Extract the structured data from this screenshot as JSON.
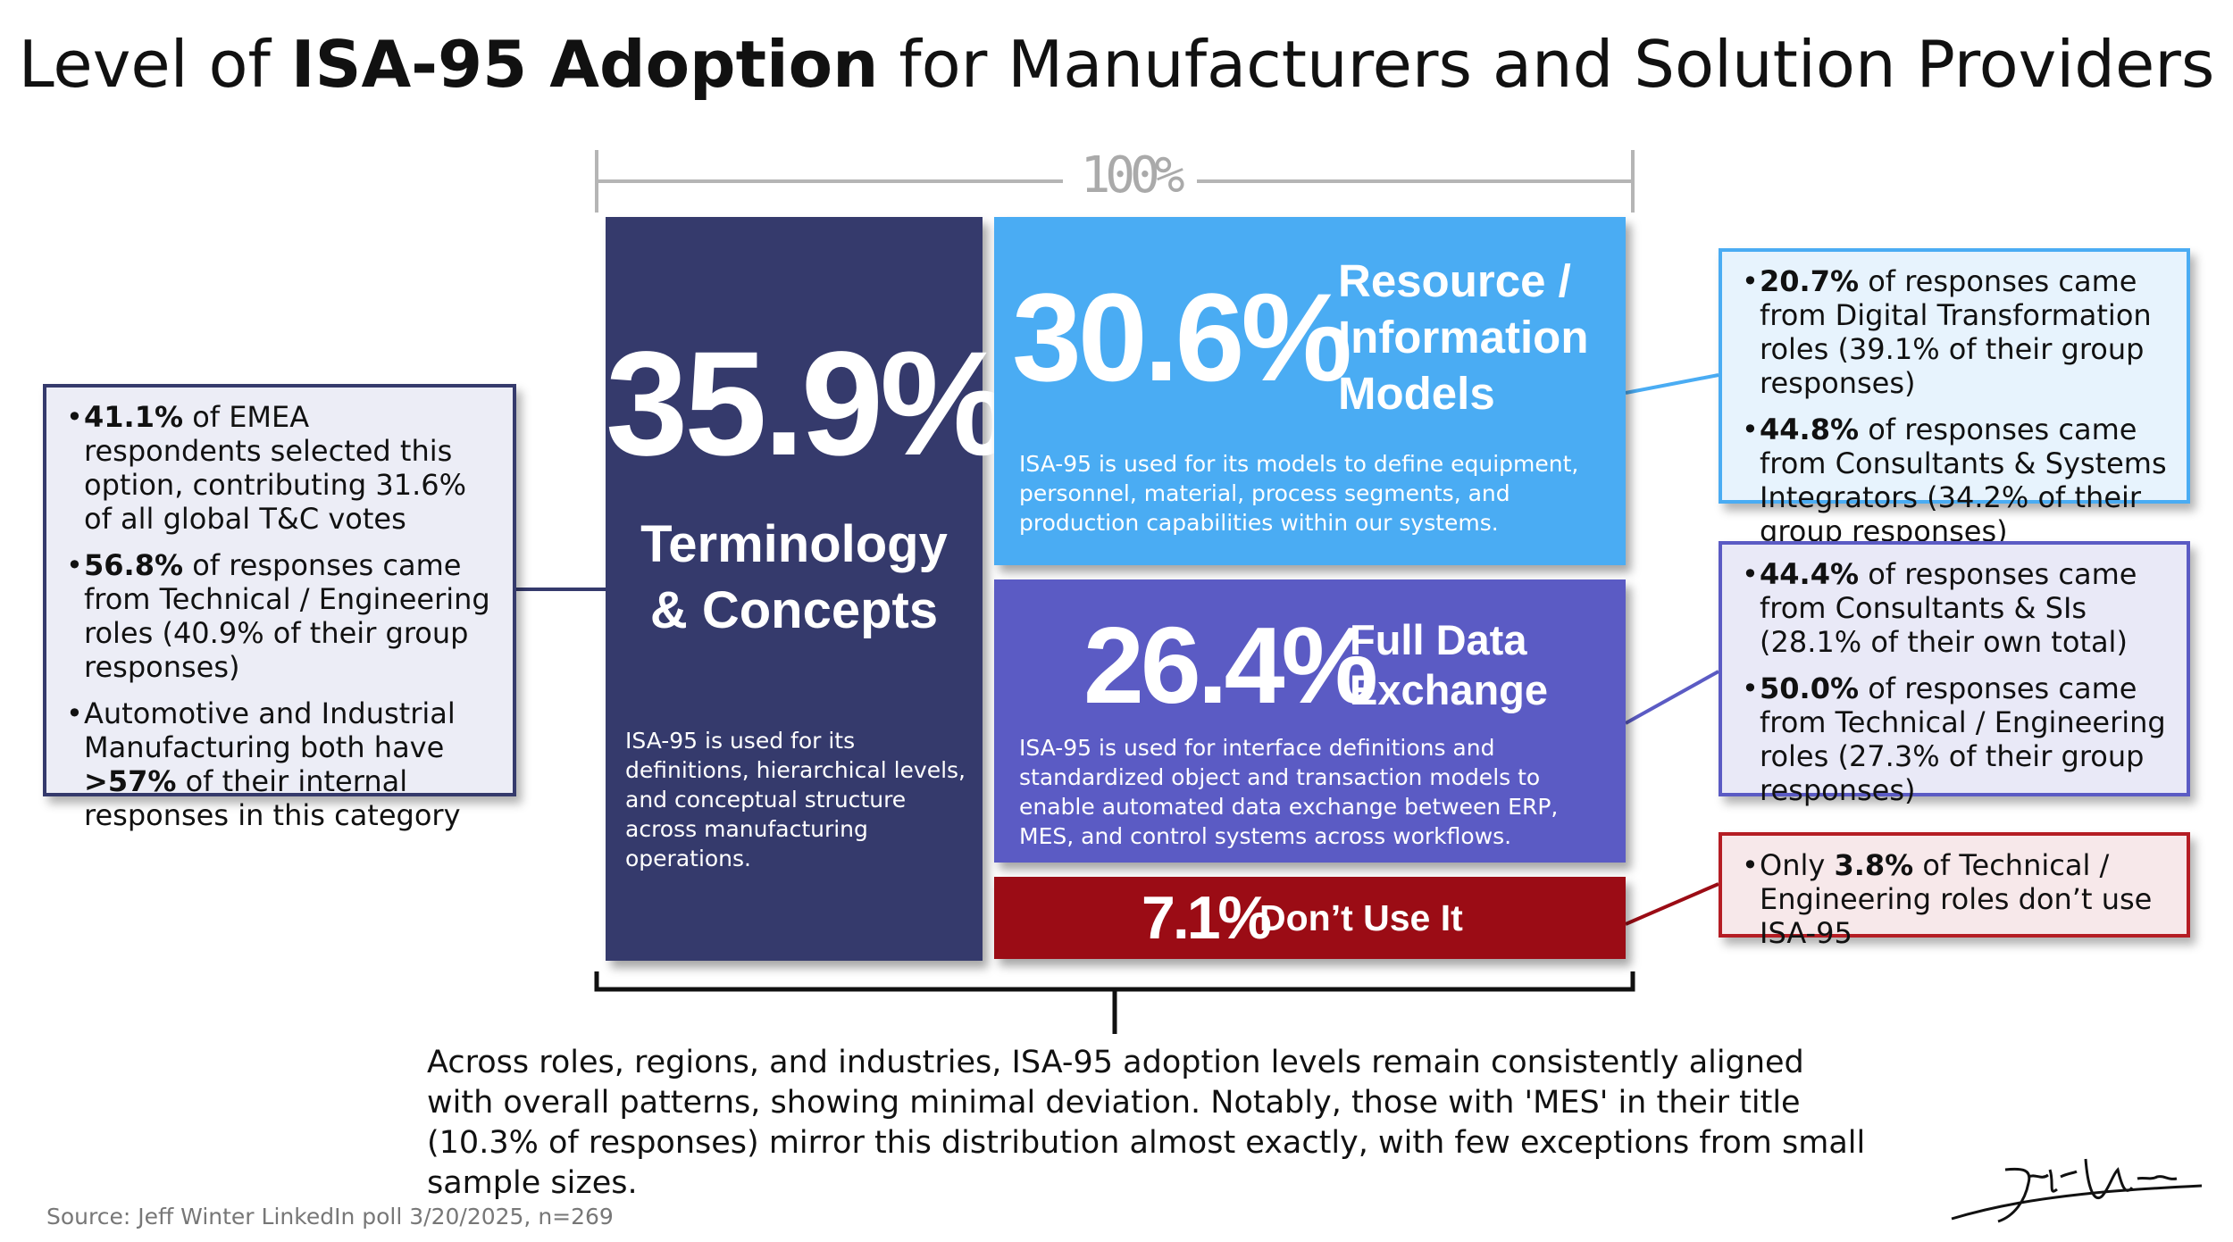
{
  "title": {
    "prefix": "Level of ",
    "bold": "ISA-95 Adoption",
    "suffix": " for Manufacturers and Solution Providers"
  },
  "scale_label": "100%",
  "chart_data": {
    "type": "bar",
    "title": "Level of ISA-95 Adoption for Manufacturers and Solution Providers",
    "categories": [
      "Terminology & Concepts",
      "Resource / Information Models",
      "Full Data Exchange",
      "Don’t Use It"
    ],
    "values": [
      35.9,
      30.6,
      26.4,
      7.1
    ],
    "unit": "%",
    "total": 100
  },
  "segments": {
    "terminology": {
      "value": "35.9%",
      "label_line1": "Terminology",
      "label_line2": "& Concepts",
      "description": "ISA-95 is used for its definitions, hierarchical levels, and conceptual structure across manufacturing operations.",
      "color": "#353a6c"
    },
    "resource": {
      "value": "30.6%",
      "label_line1": "Resource /",
      "label_line2": "Information",
      "label_line3": "Models",
      "description": "ISA-95 is used for its models to define equipment, personnel, material, process segments, and production capabilities within our systems.",
      "color": "#4aacf3"
    },
    "exchange": {
      "value": "26.4%",
      "label_line1": "Full Data",
      "label_line2": "Exchange",
      "description": "ISA-95 is used for interface definitions and standardized object and transaction models to enable automated data exchange between ERP, MES, and control systems across workflows.",
      "color": "#5b5bc4"
    },
    "dont_use": {
      "value": "7.1%",
      "label": "Don’t Use It",
      "color": "#9b0c15"
    }
  },
  "callouts": {
    "left": {
      "items": [
        {
          "bold": "41.1%",
          "text": " of EMEA respondents selected this option, contributing 31.6% of all global T&C votes"
        },
        {
          "bold": "56.8%",
          "text": " of responses came from Technical / Engineering roles (40.9% of their group responses)"
        },
        {
          "pre": "Automotive and Industrial Manufacturing both have ",
          "bold": ">57%",
          "text": " of their internal responses in this category"
        }
      ]
    },
    "resource": {
      "items": [
        {
          "bold": "20.7%",
          "text": " of responses came from Digital Transformation roles (39.1% of their group responses)"
        },
        {
          "bold": "44.8%",
          "text": " of responses came from Consultants & Systems Integrators (34.2% of their group responses)"
        }
      ]
    },
    "exchange": {
      "items": [
        {
          "bold": "44.4%",
          "text": " of responses came from Consultants & SIs (28.1% of their own total)"
        },
        {
          "bold": "50.0%",
          "text": " of responses came from Technical / Engineering roles (27.3% of their group responses)"
        }
      ]
    },
    "dont_use": {
      "items": [
        {
          "pre": "Only ",
          "bold": "3.8%",
          "text": " of Technical / Engineering roles don’t use ISA-95"
        }
      ]
    }
  },
  "summary": "Across roles, regions, and industries, ISA-95 adoption levels remain consistently aligned with overall patterns, showing minimal deviation. Notably, those with 'MES' in their title (10.3% of responses) mirror this distribution almost exactly, with few exceptions from small sample sizes.",
  "source": "Source: Jeff Winter LinkedIn poll 3/20/2025, n=269",
  "signature": "Jeff Winter"
}
